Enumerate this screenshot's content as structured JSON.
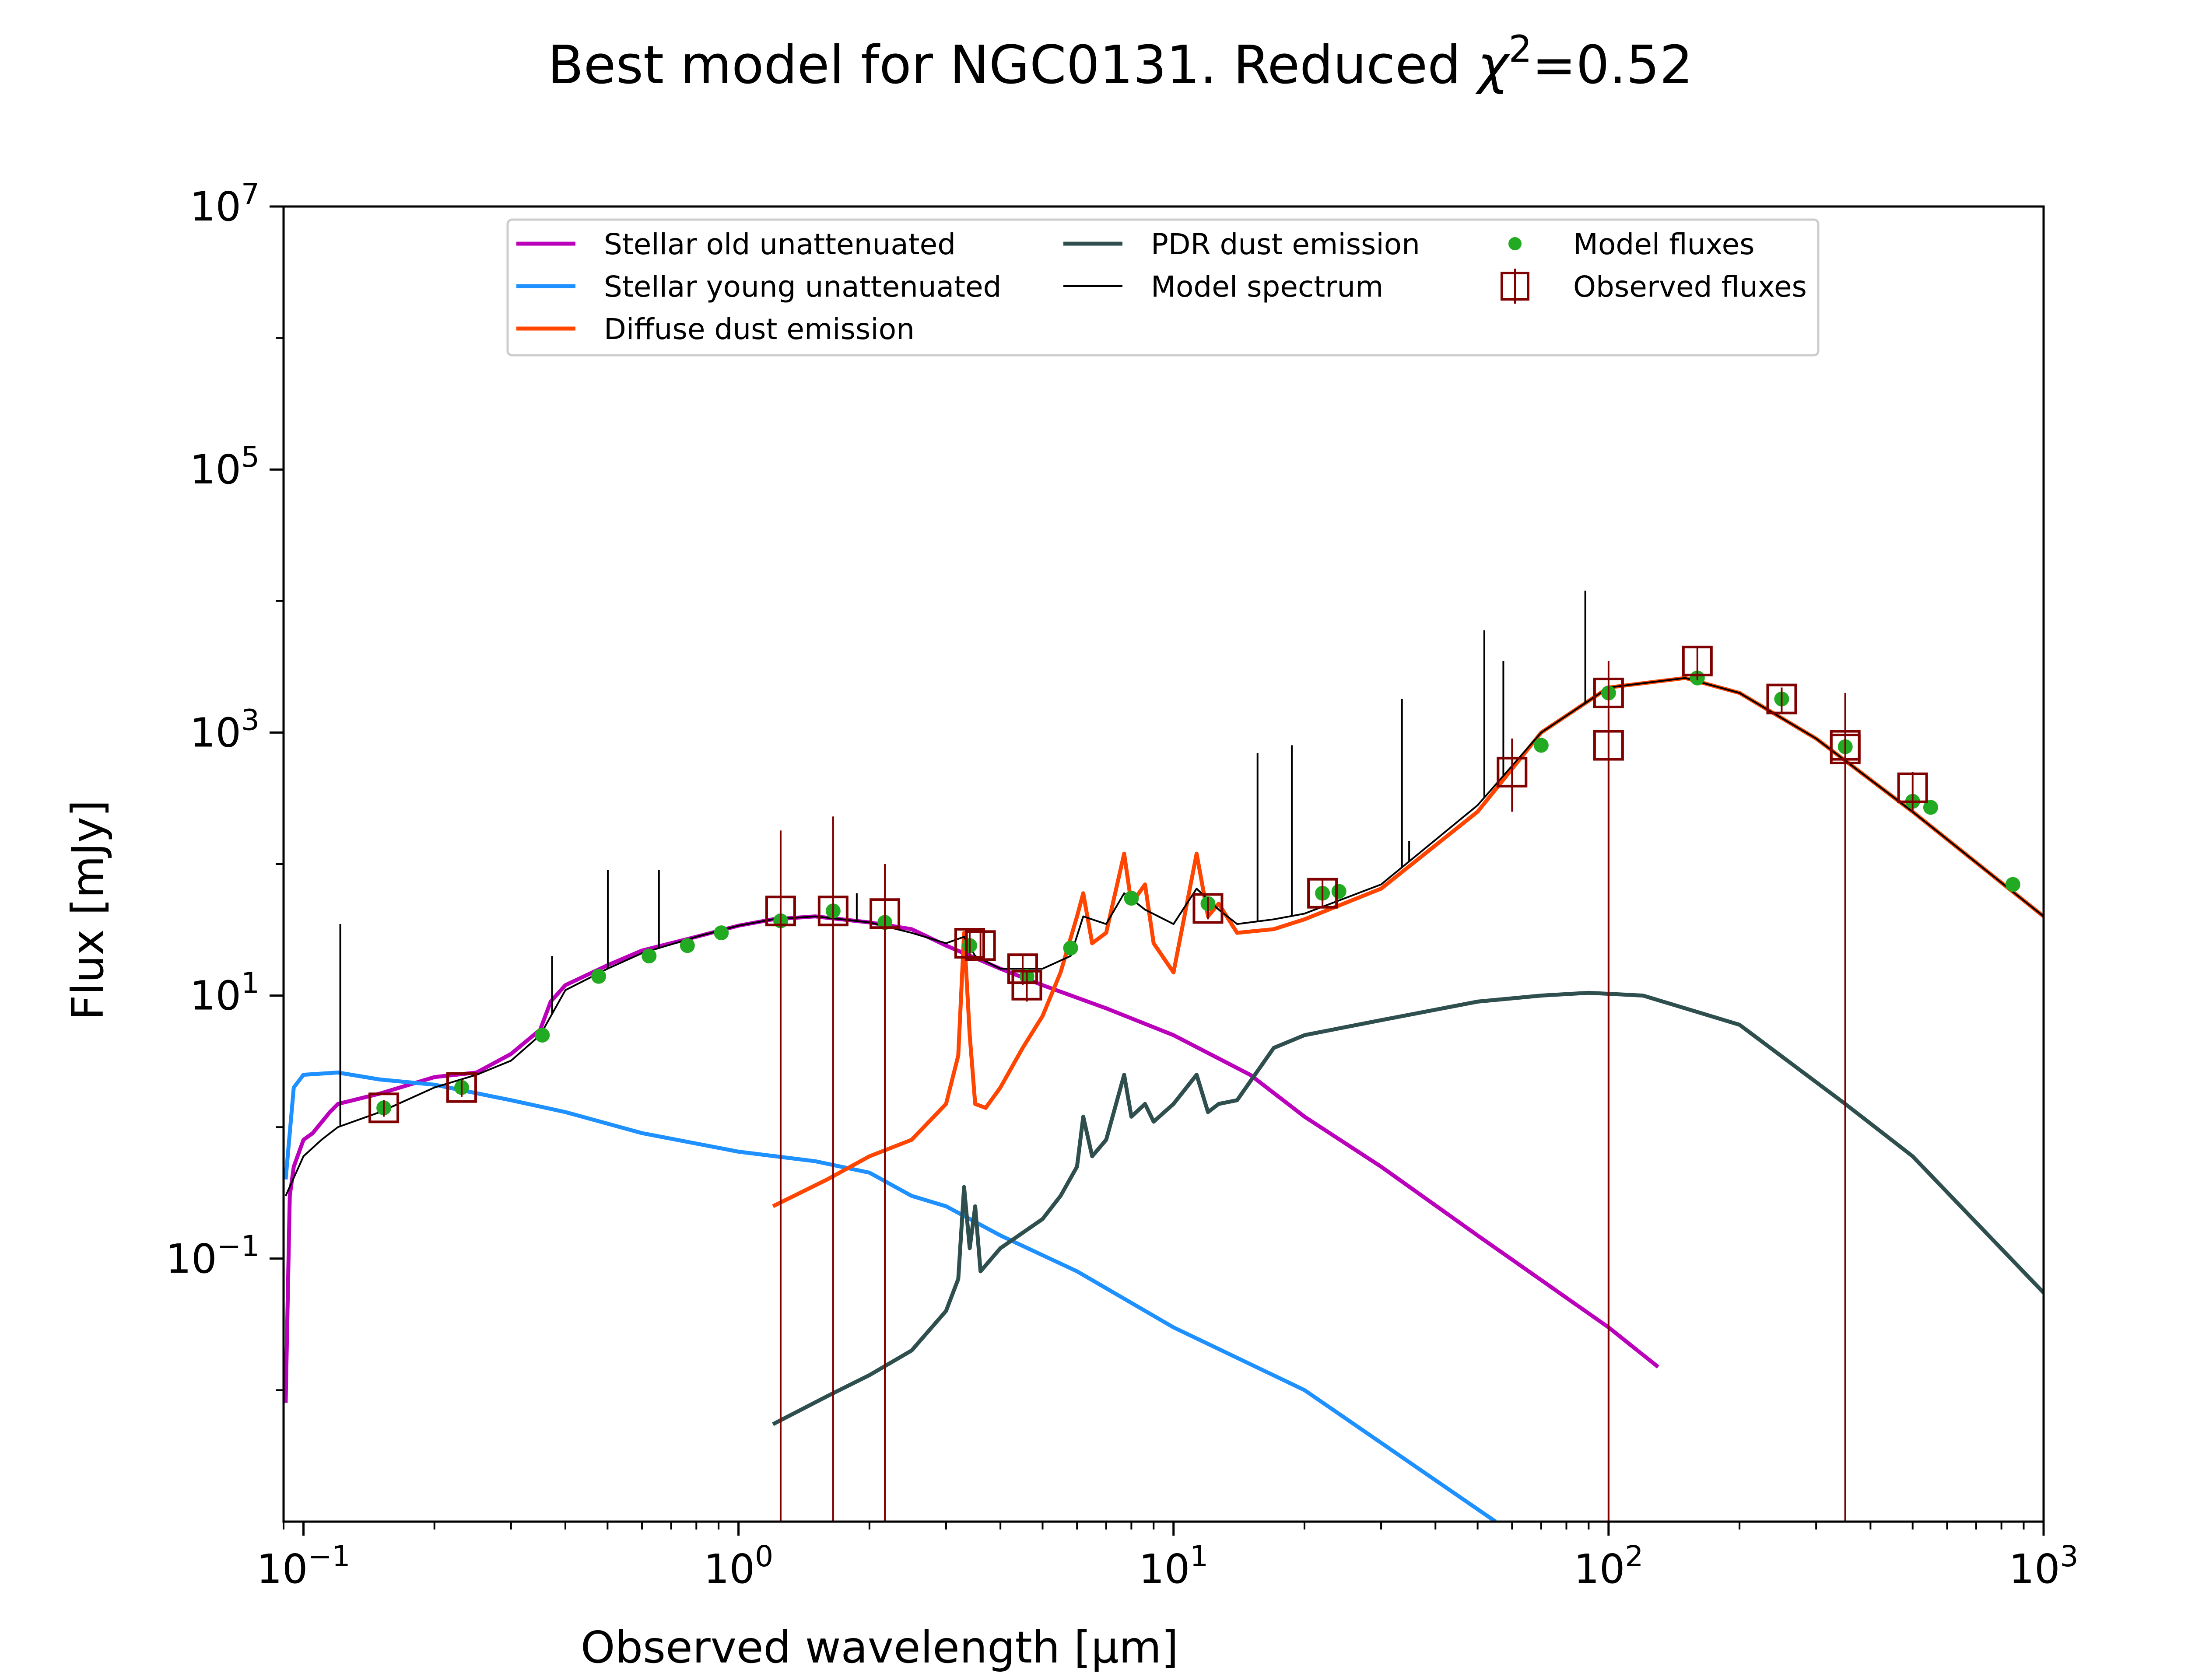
{
  "chart_data": {
    "type": "line",
    "title_prefix": "Best model for NGC0131. Reduced ",
    "title_chi": "χ",
    "title_exp": "2",
    "title_suffix": "=0.52",
    "xlabel": "Observed wavelength [μm]",
    "ylabel": "Flux [mJy]",
    "x_scale": "log",
    "y_scale": "log",
    "xlim": [
      0.09,
      1000
    ],
    "ylim": [
      0.001,
      10000000
    ],
    "grid": false,
    "legend_position": "top-center",
    "x_ticks": [
      {
        "value": 0.1,
        "base": "10",
        "exp": "−1"
      },
      {
        "value": 1,
        "base": "10",
        "exp": "0"
      },
      {
        "value": 10,
        "base": "10",
        "exp": "1"
      },
      {
        "value": 100,
        "base": "10",
        "exp": "2"
      },
      {
        "value": 1000,
        "base": "10",
        "exp": "3"
      }
    ],
    "y_ticks": [
      {
        "value": 0.1,
        "base": "10",
        "exp": "−1"
      },
      {
        "value": 10,
        "base": "10",
        "exp": "1"
      },
      {
        "value": 1000,
        "base": "10",
        "exp": "3"
      },
      {
        "value": 100000,
        "base": "10",
        "exp": "5"
      },
      {
        "value": 10000000,
        "base": "10",
        "exp": "7"
      }
    ],
    "series": [
      {
        "name": "Stellar old unattenuated",
        "color": "#bb00bb",
        "kind": "line",
        "x": [
          0.091,
          0.093,
          0.095,
          0.1,
          0.105,
          0.115,
          0.12,
          0.13,
          0.15,
          0.2,
          0.25,
          0.3,
          0.35,
          0.37,
          0.4,
          0.5,
          0.6,
          0.8,
          1.0,
          1.2,
          1.5,
          2.0,
          2.5,
          3.0,
          4.0,
          5.0,
          7.0,
          10,
          15,
          20,
          30,
          50,
          100,
          130
        ],
        "y": [
          0.008,
          0.3,
          0.5,
          0.8,
          0.9,
          1.3,
          1.5,
          1.6,
          1.8,
          2.4,
          2.6,
          3.6,
          5.5,
          9,
          12,
          17,
          22,
          28,
          34,
          38,
          40,
          36,
          32,
          24,
          16,
          12,
          8,
          5,
          2.5,
          1.2,
          0.5,
          0.15,
          0.03,
          0.015
        ]
      },
      {
        "name": "Stellar young unattenuated",
        "color": "#1e90ff",
        "kind": "line",
        "x": [
          0.091,
          0.095,
          0.1,
          0.12,
          0.15,
          0.2,
          0.3,
          0.4,
          0.6,
          1.0,
          1.5,
          2.0,
          2.5,
          3.0,
          4.0,
          6.0,
          10,
          20,
          55
        ],
        "y": [
          0.4,
          2.0,
          2.5,
          2.6,
          2.3,
          2.1,
          1.6,
          1.3,
          0.9,
          0.65,
          0.55,
          0.45,
          0.3,
          0.25,
          0.15,
          0.08,
          0.03,
          0.01,
          0.001
        ]
      },
      {
        "name": "Diffuse dust emission",
        "color": "#ff4500",
        "kind": "line",
        "x": [
          1.2,
          1.6,
          2.0,
          2.5,
          3.0,
          3.2,
          3.3,
          3.4,
          3.5,
          3.7,
          4.0,
          4.5,
          5.0,
          5.5,
          6.0,
          6.2,
          6.5,
          7.0,
          7.7,
          8.0,
          8.6,
          9.0,
          10,
          11.3,
          12,
          12.7,
          14,
          17,
          20,
          30,
          50,
          70,
          100,
          150,
          200,
          300,
          500,
          1000
        ],
        "y": [
          0.25,
          0.4,
          0.6,
          0.8,
          1.5,
          3.5,
          30,
          5,
          1.5,
          1.4,
          2,
          4,
          7,
          15,
          40,
          60,
          25,
          30,
          120,
          50,
          70,
          25,
          15,
          120,
          40,
          50,
          30,
          32,
          38,
          65,
          250,
          1000,
          2200,
          2600,
          2000,
          900,
          250,
          40
        ]
      },
      {
        "name": "PDR dust emission",
        "color": "#2f4f4f",
        "kind": "line",
        "x": [
          1.2,
          1.6,
          2.0,
          2.5,
          3.0,
          3.2,
          3.3,
          3.4,
          3.5,
          3.6,
          4.0,
          5.0,
          5.5,
          6.0,
          6.2,
          6.5,
          7.0,
          7.7,
          8.0,
          8.6,
          9.0,
          10,
          11.3,
          12,
          12.7,
          14,
          17,
          20,
          30,
          50,
          70,
          90,
          120,
          200,
          350,
          500,
          1000
        ],
        "y": [
          0.0055,
          0.009,
          0.013,
          0.02,
          0.04,
          0.07,
          0.35,
          0.12,
          0.25,
          0.08,
          0.12,
          0.2,
          0.3,
          0.5,
          1.2,
          0.6,
          0.8,
          2.5,
          1.2,
          1.5,
          1.1,
          1.5,
          2.5,
          1.3,
          1.5,
          1.6,
          4,
          5,
          6.5,
          9,
          10,
          10.5,
          10,
          6,
          1.5,
          0.6,
          0.055
        ]
      },
      {
        "name": "Model spectrum",
        "color": "#000000",
        "kind": "spectrum",
        "x": [
          0.091,
          0.1,
          0.11,
          0.12,
          0.15,
          0.2,
          0.25,
          0.3,
          0.35,
          0.4,
          0.5,
          0.6,
          0.8,
          1.0,
          1.2,
          1.5,
          2.0,
          2.5,
          3.0,
          3.3,
          3.5,
          4.0,
          5.0,
          5.8,
          6.2,
          7.0,
          7.7,
          8.6,
          10,
          11.3,
          12.7,
          14,
          17,
          20,
          30,
          50,
          70,
          100,
          150,
          200,
          300,
          500,
          1000
        ],
        "y": [
          0.3,
          0.6,
          0.8,
          1.0,
          1.3,
          2.0,
          2.5,
          3.2,
          5,
          11,
          16,
          21,
          28,
          34,
          38,
          40,
          36,
          30,
          25,
          28,
          20,
          16,
          16,
          20,
          40,
          35,
          60,
          45,
          35,
          65,
          45,
          35,
          38,
          42,
          70,
          280,
          1000,
          2200,
          2600,
          2000,
          900,
          250,
          40
        ],
        "lines": [
          {
            "x": 0.1215,
            "y": 35
          },
          {
            "x": 0.3727,
            "y": 20
          },
          {
            "x": 0.5007,
            "y": 90
          },
          {
            "x": 0.6563,
            "y": 90
          },
          {
            "x": 1.87,
            "y": 60
          },
          {
            "x": 15.6,
            "y": 700
          },
          {
            "x": 18.7,
            "y": 800
          },
          {
            "x": 33.5,
            "y": 1800
          },
          {
            "x": 34.8,
            "y": 150
          },
          {
            "x": 51.8,
            "y": 6000
          },
          {
            "x": 57.3,
            "y": 3500
          },
          {
            "x": 88.4,
            "y": 12000
          }
        ]
      },
      {
        "name": "Model fluxes",
        "color": "#22aa22",
        "kind": "points",
        "x": [
          0.153,
          0.231,
          0.354,
          0.477,
          0.623,
          0.763,
          0.913,
          1.25,
          1.65,
          2.17,
          3.4,
          4.6,
          5.8,
          8.0,
          12,
          22,
          24,
          70,
          100,
          160,
          250,
          350,
          500,
          550,
          850
        ],
        "y": [
          1.4,
          2.0,
          5,
          14,
          20,
          24,
          30,
          37,
          44,
          36,
          24,
          14,
          23,
          55,
          50,
          60,
          62,
          800,
          2000,
          2600,
          1800,
          780,
          300,
          270,
          70
        ]
      },
      {
        "name": "Observed fluxes",
        "color": "#800000",
        "kind": "errorsquares",
        "x": [
          0.153,
          0.231,
          1.25,
          1.65,
          2.17,
          3.4,
          3.6,
          4.5,
          4.6,
          12,
          22,
          60,
          100,
          100,
          160,
          250,
          350,
          350,
          500
        ],
        "y": [
          1.4,
          2.0,
          44,
          44,
          42,
          25,
          24,
          16,
          12,
          46,
          60,
          500,
          2000,
          800,
          3500,
          1800,
          800,
          750,
          380
        ],
        "yerr_low": [
          1.2,
          1.7,
          0.001,
          0.001,
          0.001,
          20,
          20,
          12,
          9,
          38,
          48,
          250,
          0.001,
          0.001,
          2500,
          1400,
          0.001,
          0.001,
          250
        ],
        "yerr_high": [
          1.6,
          2.3,
          180,
          230,
          100,
          32,
          30,
          20,
          15,
          56,
          75,
          900,
          3500,
          1500,
          4500,
          2200,
          2000,
          2000,
          500
        ]
      }
    ],
    "legend": [
      {
        "name": "Stellar old unattenuated",
        "color": "#bb00bb",
        "kind": "line"
      },
      {
        "name": "Stellar young unattenuated",
        "color": "#1e90ff",
        "kind": "line"
      },
      {
        "name": "Diffuse dust emission",
        "color": "#ff4500",
        "kind": "line"
      },
      {
        "name": "PDR dust emission",
        "color": "#2f4f4f",
        "kind": "line"
      },
      {
        "name": "Model spectrum",
        "color": "#000000",
        "kind": "thinline"
      },
      {
        "name": "Model fluxes",
        "color": "#22aa22",
        "kind": "point"
      },
      {
        "name": "Observed fluxes",
        "color": "#800000",
        "kind": "square"
      }
    ]
  }
}
